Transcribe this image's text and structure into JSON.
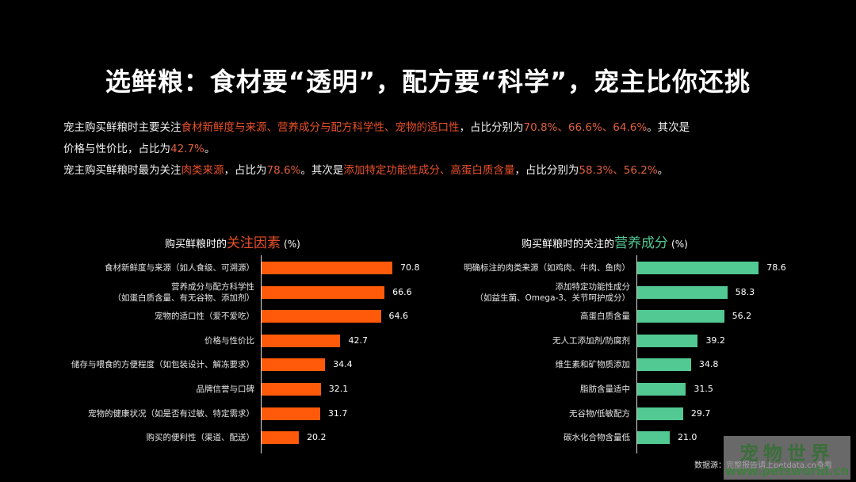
{
  "title": "选鲜粮：食材要“透明”，配方要“科学”，宠主比你还挑",
  "summary": {
    "line1": {
      "pre": "宠主购买鲜粮时主要关注",
      "hl": "食材新鲜度与来源、营养成分与配方科学性、宠物的适口性",
      "mid": "，占比分别为",
      "nums": "70.8%、66.6%、64.6%",
      "post": "。其次是"
    },
    "line2": {
      "pre": "价格与性价比，占比为",
      "num": "42.7%",
      "post": "。"
    },
    "line3": {
      "pre": "宠主购买鲜粮时最为关注",
      "hl1": "肉类来源",
      "mid1": "，占比为",
      "num1": "78.6%",
      "mid2": "。其次是",
      "hl2": "添加特定功能性成分、高蛋白质含量",
      "mid3": "，占比分别为",
      "nums2": "58.3%、56.2%",
      "post": "。"
    }
  },
  "colors": {
    "left_bar": "#ff5a0a",
    "right_bar": "#52c893",
    "left_highlight": "#e8502a",
    "right_highlight": "#52c893"
  },
  "chart_data": [
    {
      "type": "bar",
      "orientation": "horizontal",
      "title": "购买鲜粮时的关注因素（%）",
      "title_parts": {
        "pre": "购买鲜粮时的",
        "big": "关注因素",
        "unit": "(%)"
      },
      "categories": [
        [
          "食材新鲜度与来源（如人食级、可溯源）"
        ],
        [
          "营养成分与配方科学性",
          "（如蛋白质含量、有无谷物、添加剂）"
        ],
        [
          "宠物的适口性（爱不爱吃）"
        ],
        [
          "价格与性价比"
        ],
        [
          "储存与喂食的方便程度（如包装设计、解冻要求）"
        ],
        [
          "品牌信誉与口碑"
        ],
        [
          "宠物的健康状况（如是否有过敏、特定需求）"
        ],
        [
          "购买的便利性（渠道、配送）"
        ]
      ],
      "values": [
        70.8,
        66.6,
        64.6,
        42.7,
        34.4,
        32.1,
        31.7,
        20.2
      ],
      "value_labels": [
        "70.8",
        "66.6",
        "64.6",
        "42.7",
        "34.4",
        "32.1",
        "31.7",
        "20.2"
      ],
      "xlabel": "",
      "ylabel": "",
      "grid": false,
      "legend": "none",
      "color": "#ff5a0a"
    },
    {
      "type": "bar",
      "orientation": "horizontal",
      "title": "购买鲜粮时的关注的营养成分（%）",
      "title_parts": {
        "pre": "购买鲜粮时的关注的",
        "big": "营养成分",
        "unit": "(%)"
      },
      "categories": [
        [
          "明确标注的肉类来源（如鸡肉、牛肉、鱼肉）"
        ],
        [
          "添加特定功能性成分",
          "（如益生菌、Omega-3、关节呵护成分）"
        ],
        [
          "高蛋白质含量"
        ],
        [
          "无人工添加剂/防腐剂"
        ],
        [
          "维生素和矿物质添加"
        ],
        [
          "脂肪含量适中"
        ],
        [
          "无谷物/低敏配方"
        ],
        [
          "碳水化合物含量低"
        ]
      ],
      "values": [
        78.6,
        58.3,
        56.2,
        39.2,
        34.8,
        31.5,
        29.7,
        21.0
      ],
      "value_labels": [
        "78.6",
        "58.3",
        "56.2",
        "39.2",
        "34.8",
        "31.5",
        "29.7",
        "21.0"
      ],
      "xlabel": "",
      "ylabel": "",
      "grid": false,
      "legend": "none",
      "color": "#52c893"
    }
  ],
  "source": "数据源：完整报告请上petdata.cn查看",
  "watermark": {
    "cn": "宠物世界",
    "en": "www.petsworld.cn"
  }
}
